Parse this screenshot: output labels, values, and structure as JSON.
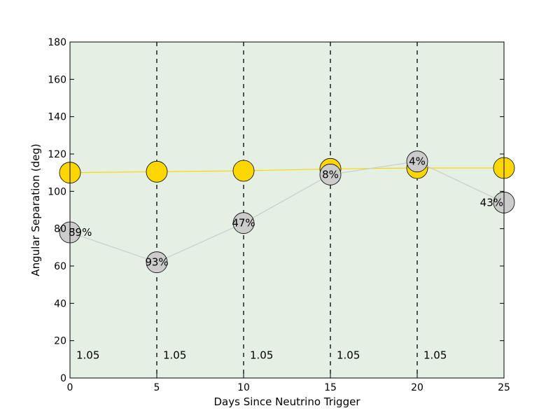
{
  "chart_data": {
    "type": "line",
    "xlabel": "Days Since Neutrino Trigger",
    "ylabel": "Angular Separation (deg)",
    "xlim": [
      0,
      25
    ],
    "ylim": [
      0,
      180
    ],
    "xticks": [
      0,
      5,
      10,
      15,
      20,
      25
    ],
    "yticks": [
      0,
      20,
      40,
      60,
      80,
      100,
      120,
      140,
      160,
      180
    ],
    "grid": false,
    "background_color": "#e3f0e3",
    "series": [
      {
        "color": "#ffd700",
        "x": [
          0,
          5,
          10,
          15,
          20,
          25
        ],
        "y": [
          110,
          110.5,
          111,
          112,
          112.5,
          112.5
        ]
      },
      {
        "color": "#cccccc",
        "x": [
          0,
          5,
          10,
          15,
          20,
          25
        ],
        "y": [
          78,
          62,
          83,
          109,
          116,
          94
        ],
        "point_labels": [
          "89%",
          "93%",
          "47%",
          "8%",
          "4%",
          "43%"
        ]
      }
    ],
    "vertical_lines": {
      "x": [
        5,
        10,
        15,
        20
      ],
      "style": "dashed"
    },
    "line_labels": {
      "x": [
        0,
        5,
        10,
        15,
        20
      ],
      "y": 11,
      "text": "1.05"
    }
  }
}
